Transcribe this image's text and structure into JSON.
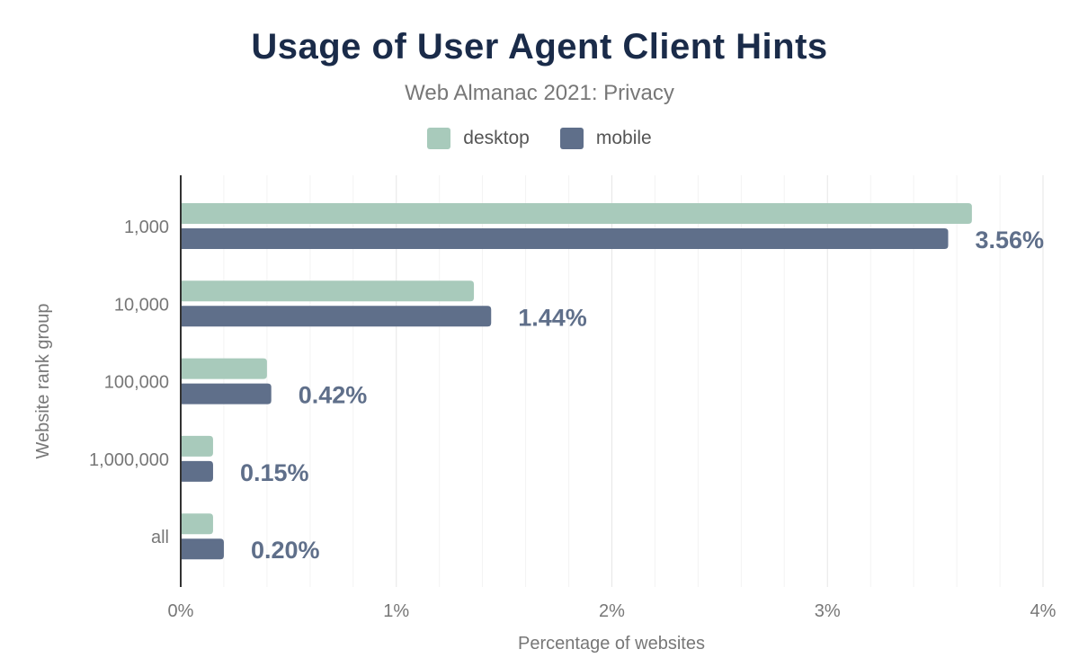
{
  "title": "Usage of User Agent Client Hints",
  "subtitle": "Web Almanac 2021: Privacy",
  "chart_data": {
    "type": "bar",
    "orientation": "horizontal",
    "categories": [
      "1,000",
      "10,000",
      "100,000",
      "1,000,000",
      "all"
    ],
    "series": [
      {
        "name": "desktop",
        "color": "#a8cabb",
        "values": [
          3.67,
          1.36,
          0.4,
          0.15,
          0.15
        ]
      },
      {
        "name": "mobile",
        "color": "#5f6f8a",
        "values": [
          3.56,
          1.44,
          0.42,
          0.15,
          0.2
        ]
      }
    ],
    "data_labels": [
      "3.56%",
      "1.44%",
      "0.42%",
      "0.15%",
      "0.20%"
    ],
    "xlabel": "Percentage of websites",
    "ylabel": "Website rank group",
    "xlim": [
      0,
      4
    ],
    "xticks": [
      "0%",
      "1%",
      "2%",
      "3%",
      "4%"
    ],
    "grid": true,
    "legend_position": "top"
  }
}
